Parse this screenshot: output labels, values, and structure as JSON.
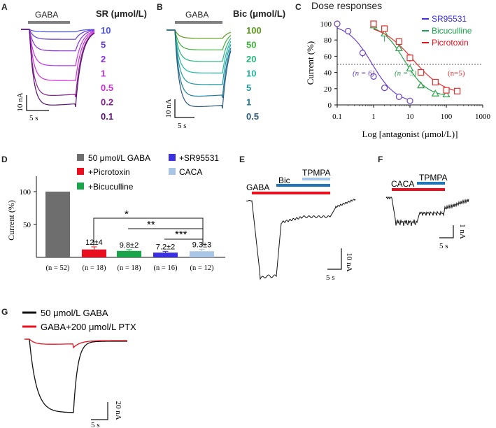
{
  "colors": {
    "black": "#111111",
    "gray_bar": "#6e6e6e",
    "red": "#e8101e",
    "green": "#1aa54b",
    "blue": "#3a30e0",
    "light_blue": "#a9c6e6",
    "bic_bar": "#2074b8",
    "tpmpa_bar": "#a7c7e8",
    "sr": "#7040c8",
    "bic": "#2aa04a",
    "ptx": "#e03030"
  },
  "panels": {
    "A": {
      "label": "A",
      "bar_label": "GABA",
      "legend_title": "SR (μmol/L)",
      "concentrations": [
        "10",
        "5",
        "2",
        "1",
        "0.5",
        "0.2",
        "0.1"
      ],
      "trace_colors": [
        "#4a52e8",
        "#6238d6",
        "#8a2fe0",
        "#c234e8",
        "#cf2dd6",
        "#8a1f96",
        "#5a1070"
      ],
      "trace_levels": [
        0.03,
        0.12,
        0.26,
        0.44,
        0.62,
        0.82,
        0.94
      ],
      "scale_y": "10 nA",
      "scale_x": "5 s"
    },
    "B": {
      "label": "B",
      "bar_label": "GABA",
      "legend_title": "Bic (μmol/L)",
      "concentrations": [
        "100",
        "50",
        "20",
        "10",
        "5",
        "1",
        "0.5"
      ],
      "trace_colors": [
        "#5a9a1a",
        "#3fb03a",
        "#26b87a",
        "#20b8a0",
        "#1e9aa0",
        "#1f7a9a",
        "#2a5a80"
      ],
      "trace_levels": [
        0.1,
        0.24,
        0.38,
        0.52,
        0.66,
        0.82,
        0.95
      ],
      "scale_y": "10 nA",
      "scale_x": "5 s"
    },
    "C": {
      "label": "C",
      "title": "Dose responses",
      "legend": [
        "SR95531",
        "Bicuculline",
        "Picrotoxin"
      ],
      "n_labels": [
        "(n = 6)",
        "(n = 5)",
        "(n=5)"
      ]
    },
    "D": {
      "label": "D",
      "legend": [
        "50 μmol/L GABA",
        "+SR95531",
        "+Picrotoxin",
        "CACA",
        "+Bicuculline"
      ],
      "value_labels": [
        "12±4",
        "9.8±2",
        "7.2±2",
        "9.3±3"
      ],
      "n_labels": [
        "(n = 52)",
        "(n = 18)",
        "(n = 18)",
        "(n = 16)",
        "(n = 12)"
      ],
      "stars": [
        "*",
        "**",
        "***"
      ]
    },
    "E": {
      "label": "E",
      "bars": [
        "GABA",
        "Bic",
        "TPMPA"
      ],
      "scale_y": "10 nA",
      "scale_x": "5 s"
    },
    "F": {
      "label": "F",
      "bars": [
        "CACA",
        "TPMPA"
      ],
      "scale_y": "1 nA",
      "scale_x": "5 s"
    },
    "G": {
      "label": "G",
      "legend": [
        "50 μmol/L GABA",
        "GABA+200 μmol/L PTX"
      ],
      "scale_y": "20 nA",
      "scale_x": "5 s"
    }
  },
  "chart_data": [
    {
      "type": "scatter",
      "title": "Dose responses",
      "xlabel": "Log [antagonist (μmol/L)]",
      "ylabel": "Current (%)",
      "xscale": "log",
      "xlim": [
        0.1,
        1000
      ],
      "ylim": [
        0,
        100
      ],
      "xticks": [
        "0.1",
        "1",
        "10",
        "100",
        "1000"
      ],
      "yticks": [
        "0",
        "20",
        "40",
        "60",
        "80",
        "100"
      ],
      "reference_line_y": 50,
      "legend_position": "top-right",
      "series": [
        {
          "name": "SR95531",
          "x": [
            0.1,
            0.2,
            0.5,
            1,
            2,
            5,
            10
          ],
          "y": [
            100,
            91,
            64,
            35,
            21,
            10,
            5
          ],
          "err": [
            0,
            3,
            5,
            4,
            2,
            2,
            2
          ]
        },
        {
          "name": "Bicuculline",
          "x": [
            1,
            2,
            5,
            10,
            20,
            50,
            100
          ],
          "y": [
            98,
            88,
            70,
            45,
            24,
            14,
            13
          ],
          "err": [
            0,
            10,
            4,
            4,
            3,
            2,
            2
          ]
        },
        {
          "name": "Picrotoxin",
          "x": [
            1,
            2,
            5,
            10,
            20,
            50,
            100,
            200
          ],
          "y": [
            100,
            94,
            78,
            58,
            40,
            28,
            18,
            17
          ],
          "err": [
            0,
            3,
            4,
            5,
            4,
            3,
            2,
            2
          ]
        }
      ]
    },
    {
      "type": "bar",
      "ylabel": "Current (%)",
      "ylim": [
        0,
        130
      ],
      "yticks": [
        "50",
        "100"
      ],
      "categories": [
        "50 μmol/L GABA",
        "+Picrotoxin",
        "+Bicuculline",
        "+SR95531",
        "CACA"
      ],
      "values": [
        100,
        12,
        9.8,
        7.2,
        9.3
      ],
      "errors": [
        0,
        4,
        2,
        2,
        3
      ]
    }
  ]
}
